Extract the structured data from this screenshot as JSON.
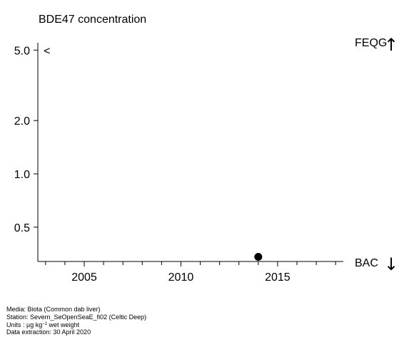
{
  "chart_data": {
    "type": "scatter",
    "title": "BDE47 concentration",
    "xlabel": "",
    "ylabel": "",
    "x_axis": {
      "range": [
        2002.6,
        2018.4
      ],
      "ticks": [
        {
          "value": 2005,
          "label": "2005"
        },
        {
          "value": 2010,
          "label": "2010"
        },
        {
          "value": 2015,
          "label": "2015"
        }
      ],
      "minor_ticks": [
        2003,
        2004,
        2006,
        2007,
        2008,
        2009,
        2011,
        2012,
        2013,
        2014,
        2016,
        2017,
        2018
      ]
    },
    "y_axis": {
      "scale": "log",
      "range": [
        0.32,
        5.5
      ],
      "ticks": [
        {
          "value": 0.5,
          "label": "0.5"
        },
        {
          "value": 1.0,
          "label": "1.0"
        },
        {
          "value": 2.0,
          "label": "2.0"
        },
        {
          "value": 5.0,
          "label": "5.0"
        }
      ]
    },
    "points": [
      {
        "x": 2014,
        "y": 0.34
      }
    ],
    "annotations": [
      {
        "text": "<",
        "x": 2002.9,
        "y": 5.0
      }
    ],
    "thresholds": [
      {
        "label": "FEQG",
        "direction": "up",
        "arrow": "↑"
      },
      {
        "label": "BAC",
        "direction": "down",
        "arrow": "↓"
      }
    ],
    "grid": false,
    "point_color": "#000000"
  },
  "footer": {
    "media": "Media: Biota (Common dab liver)",
    "station": "Station: Severn_SeOpenSeaE_fi02 (Celtic Deep)",
    "units_prefix": "Units : µg kg",
    "units_sup": "−1",
    "units_suffix": " wet weight",
    "extraction": "Data extraction: 30 April 2020"
  }
}
